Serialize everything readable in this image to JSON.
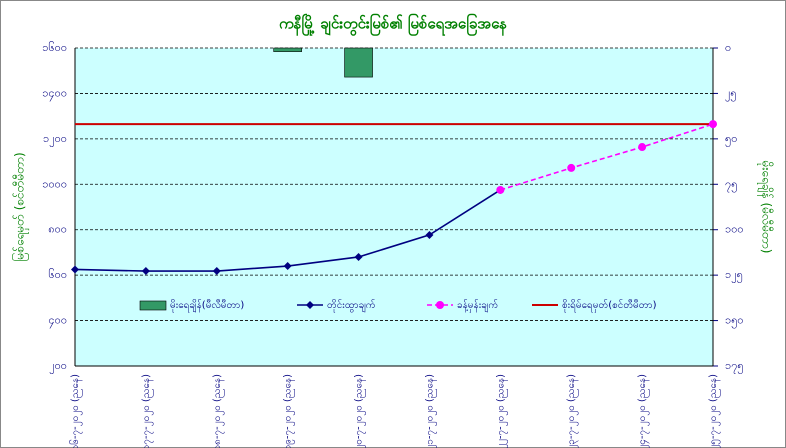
{
  "chart_data": {
    "type": "combo",
    "title": "ကနီမြို့ ချင်းတွင်းမြစ်၏ မြစ်ရေအခြေအနေ",
    "ylabel": "မြစ်ရေမှတ် (စင်တီမီတာ)",
    "y2label": "မိုးရေချိန် (မီလီမီတာ)",
    "categories": [
      "၁၆-၇-၂၀၂၀ (ညနေ)",
      "၁၇-၇-၂၀၂၀ (ညနေ)",
      "၁၈-၇-၂၀၂၀ (ညနေ)",
      "၁၉-၇-၂၀၂၀ (ညနေ)",
      "၂၀-၇-၂၀၂၀ (ညနေ)",
      "၂၁-၇-၂၀၂၀ (ညနေ)",
      "၂၂-၇-၂၀၂၀ (ညနေ)",
      "၂၃-၇-၂၀၂၀ (ညနေ)",
      "၂၄-၇-၂၀၂၀ (ညနေ)",
      "၂၅-၇-၂၀၂၀ (ညနေ)"
    ],
    "series": [
      {
        "name": "မိုးရေချိန်(မီလီမီတာ)",
        "kind": "bar",
        "axis": "y2",
        "color": "#339966",
        "values": [
          null,
          null,
          null,
          2,
          16,
          null,
          null,
          null,
          null,
          null
        ]
      },
      {
        "name": "တိုင်းထွာချက်",
        "kind": "line",
        "dash": false,
        "color": "#000080",
        "marker": "diamond",
        "values": [
          625,
          618,
          618,
          640,
          680,
          777,
          975,
          null,
          null,
          null
        ]
      },
      {
        "name": "ခန့်မှန်းချက်",
        "kind": "line",
        "dash": true,
        "color": "#ff00ff",
        "marker": "circle",
        "values": [
          null,
          null,
          null,
          null,
          null,
          null,
          975,
          1072,
          1164,
          1265
        ]
      }
    ],
    "reference_line": {
      "name": "စိုးရိမ်ရေမှတ်(စင်တီမီတာ)",
      "value": 1265,
      "color": "#cc0000"
    },
    "ylim": [
      200,
      1600
    ],
    "yticks": [
      {
        "value": 200,
        "label": "၂၀၀"
      },
      {
        "value": 400,
        "label": "၄၀၀"
      },
      {
        "value": 600,
        "label": "၆၀၀"
      },
      {
        "value": 800,
        "label": "၈၀၀"
      },
      {
        "value": 1000,
        "label": "၁၀၀၀"
      },
      {
        "value": 1200,
        "label": "၁၂၀၀"
      },
      {
        "value": 1400,
        "label": "၁၄၀၀"
      },
      {
        "value": 1600,
        "label": "၁၆၀၀"
      }
    ],
    "y2lim": [
      0,
      175
    ],
    "y2_reversed": true,
    "y2ticks": [
      {
        "value": 0,
        "label": "၀"
      },
      {
        "value": 25,
        "label": "၂၅"
      },
      {
        "value": 50,
        "label": "၅၀"
      },
      {
        "value": 75,
        "label": "၇၅"
      },
      {
        "value": 100,
        "label": "၁၀၀"
      },
      {
        "value": 125,
        "label": "၁၂၅"
      },
      {
        "value": 150,
        "label": "၁၅၀"
      },
      {
        "value": 175,
        "label": "၁၇၅"
      }
    ],
    "grid": true
  }
}
